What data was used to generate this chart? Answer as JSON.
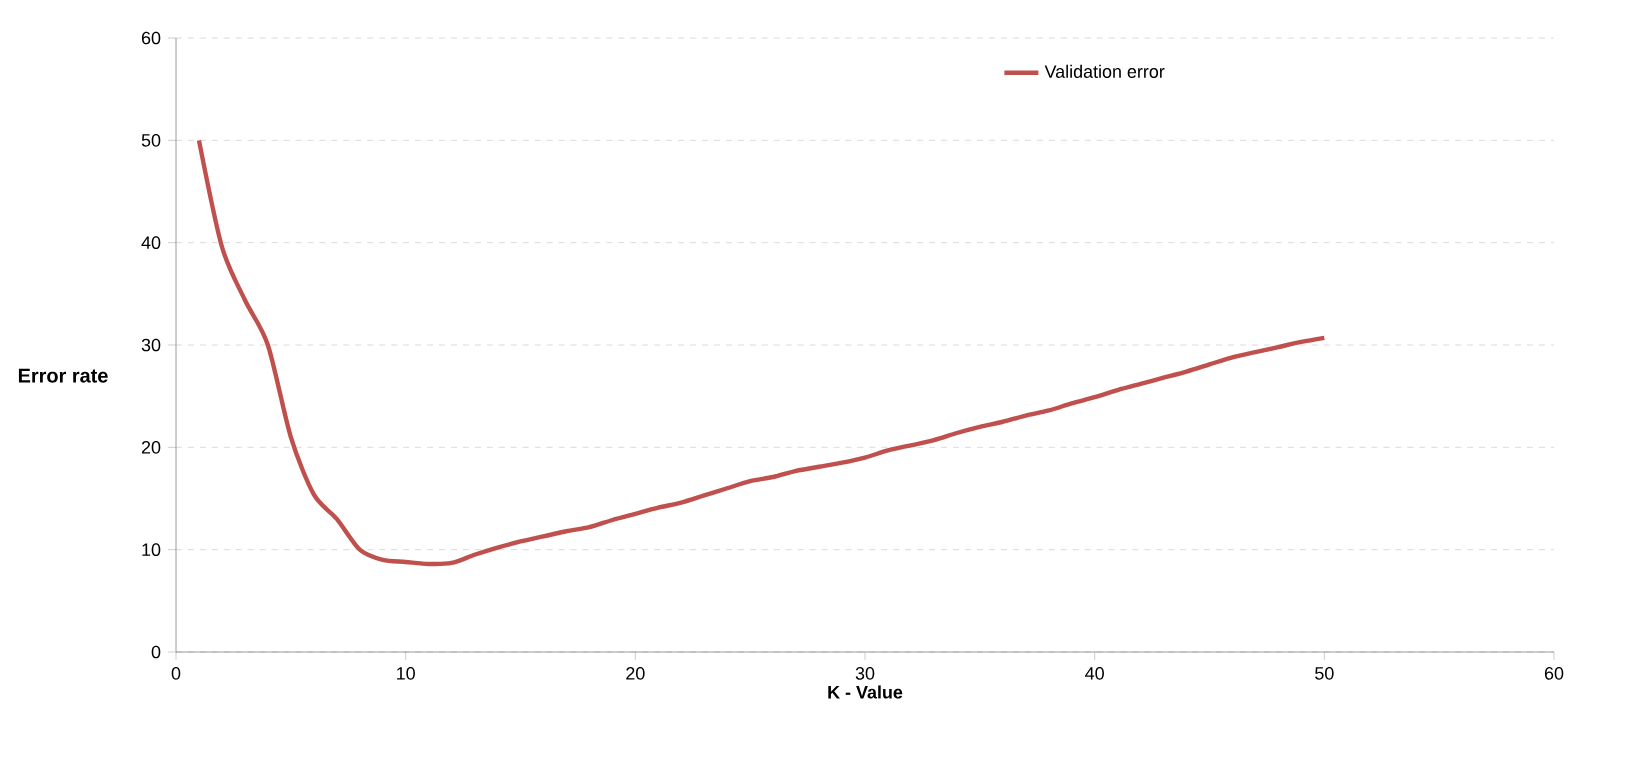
{
  "chart_data": {
    "type": "line",
    "xlabel": "K - Value",
    "ylabel": "Error rate",
    "xlim": [
      0,
      60
    ],
    "xticks": [
      0,
      10,
      20,
      30,
      40,
      50,
      60
    ],
    "ylim": [
      0,
      60
    ],
    "yticks": [
      0,
      10,
      20,
      30,
      40,
      50,
      60
    ],
    "grid": "y",
    "legend": "top",
    "line_style": "solid",
    "marker": "none",
    "series": [
      {
        "name": "Validation error",
        "color": "#c0504d",
        "x": [
          1,
          2,
          3,
          4,
          5,
          6,
          7,
          8,
          9,
          10,
          11,
          12,
          13,
          14,
          15,
          16,
          17,
          18,
          19,
          20,
          21,
          22,
          23,
          24,
          25,
          26,
          27,
          28,
          29,
          30,
          31,
          32,
          33,
          34,
          35,
          36,
          37,
          38,
          39,
          40,
          41,
          42,
          43,
          44,
          45,
          46,
          47,
          48,
          49,
          50
        ],
        "values": [
          50,
          39.6,
          34.4,
          30,
          21,
          15.4,
          13,
          10,
          9,
          8.8,
          8.6,
          8.7,
          9.5,
          10.2,
          10.8,
          11.3,
          11.8,
          12.2,
          12.9,
          13.5,
          14.1,
          14.6,
          15.3,
          16,
          16.7,
          17.1,
          17.7,
          18.1,
          18.5,
          19,
          19.7,
          20.2,
          20.7,
          21.4,
          22,
          22.5,
          23.1,
          23.6,
          24.3,
          24.9,
          25.6,
          26.2,
          26.8,
          27.4,
          28.1,
          28.8,
          29.3,
          29.8,
          30.3,
          30.7
        ]
      }
    ]
  }
}
